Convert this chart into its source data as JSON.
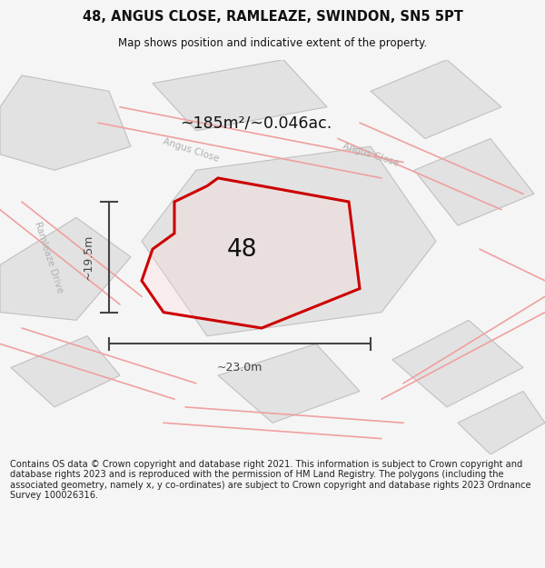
{
  "title": "48, ANGUS CLOSE, RAMLEAZE, SWINDON, SN5 5PT",
  "subtitle": "Map shows position and indicative extent of the property.",
  "area_text": "~185m²/~0.046ac.",
  "label_48": "48",
  "dim_width": "~23.0m",
  "dim_height": "~19.5m",
  "footer": "Contains OS data © Crown copyright and database right 2021. This information is subject to Crown copyright and database rights 2023 and is reproduced with the permission of HM Land Registry. The polygons (including the associated geometry, namely x, y co-ordinates) are subject to Crown copyright and database rights 2023 Ordnance Survey 100026316.",
  "bg_color": "#f5f5f5",
  "map_bg": "#ffffff",
  "red_line": "#cc0000",
  "red_light": "#f0a0a0",
  "street_label_color": "#b0b0b0",
  "title_color": "#111111",
  "footer_color": "#222222",
  "dim_color": "#444444"
}
